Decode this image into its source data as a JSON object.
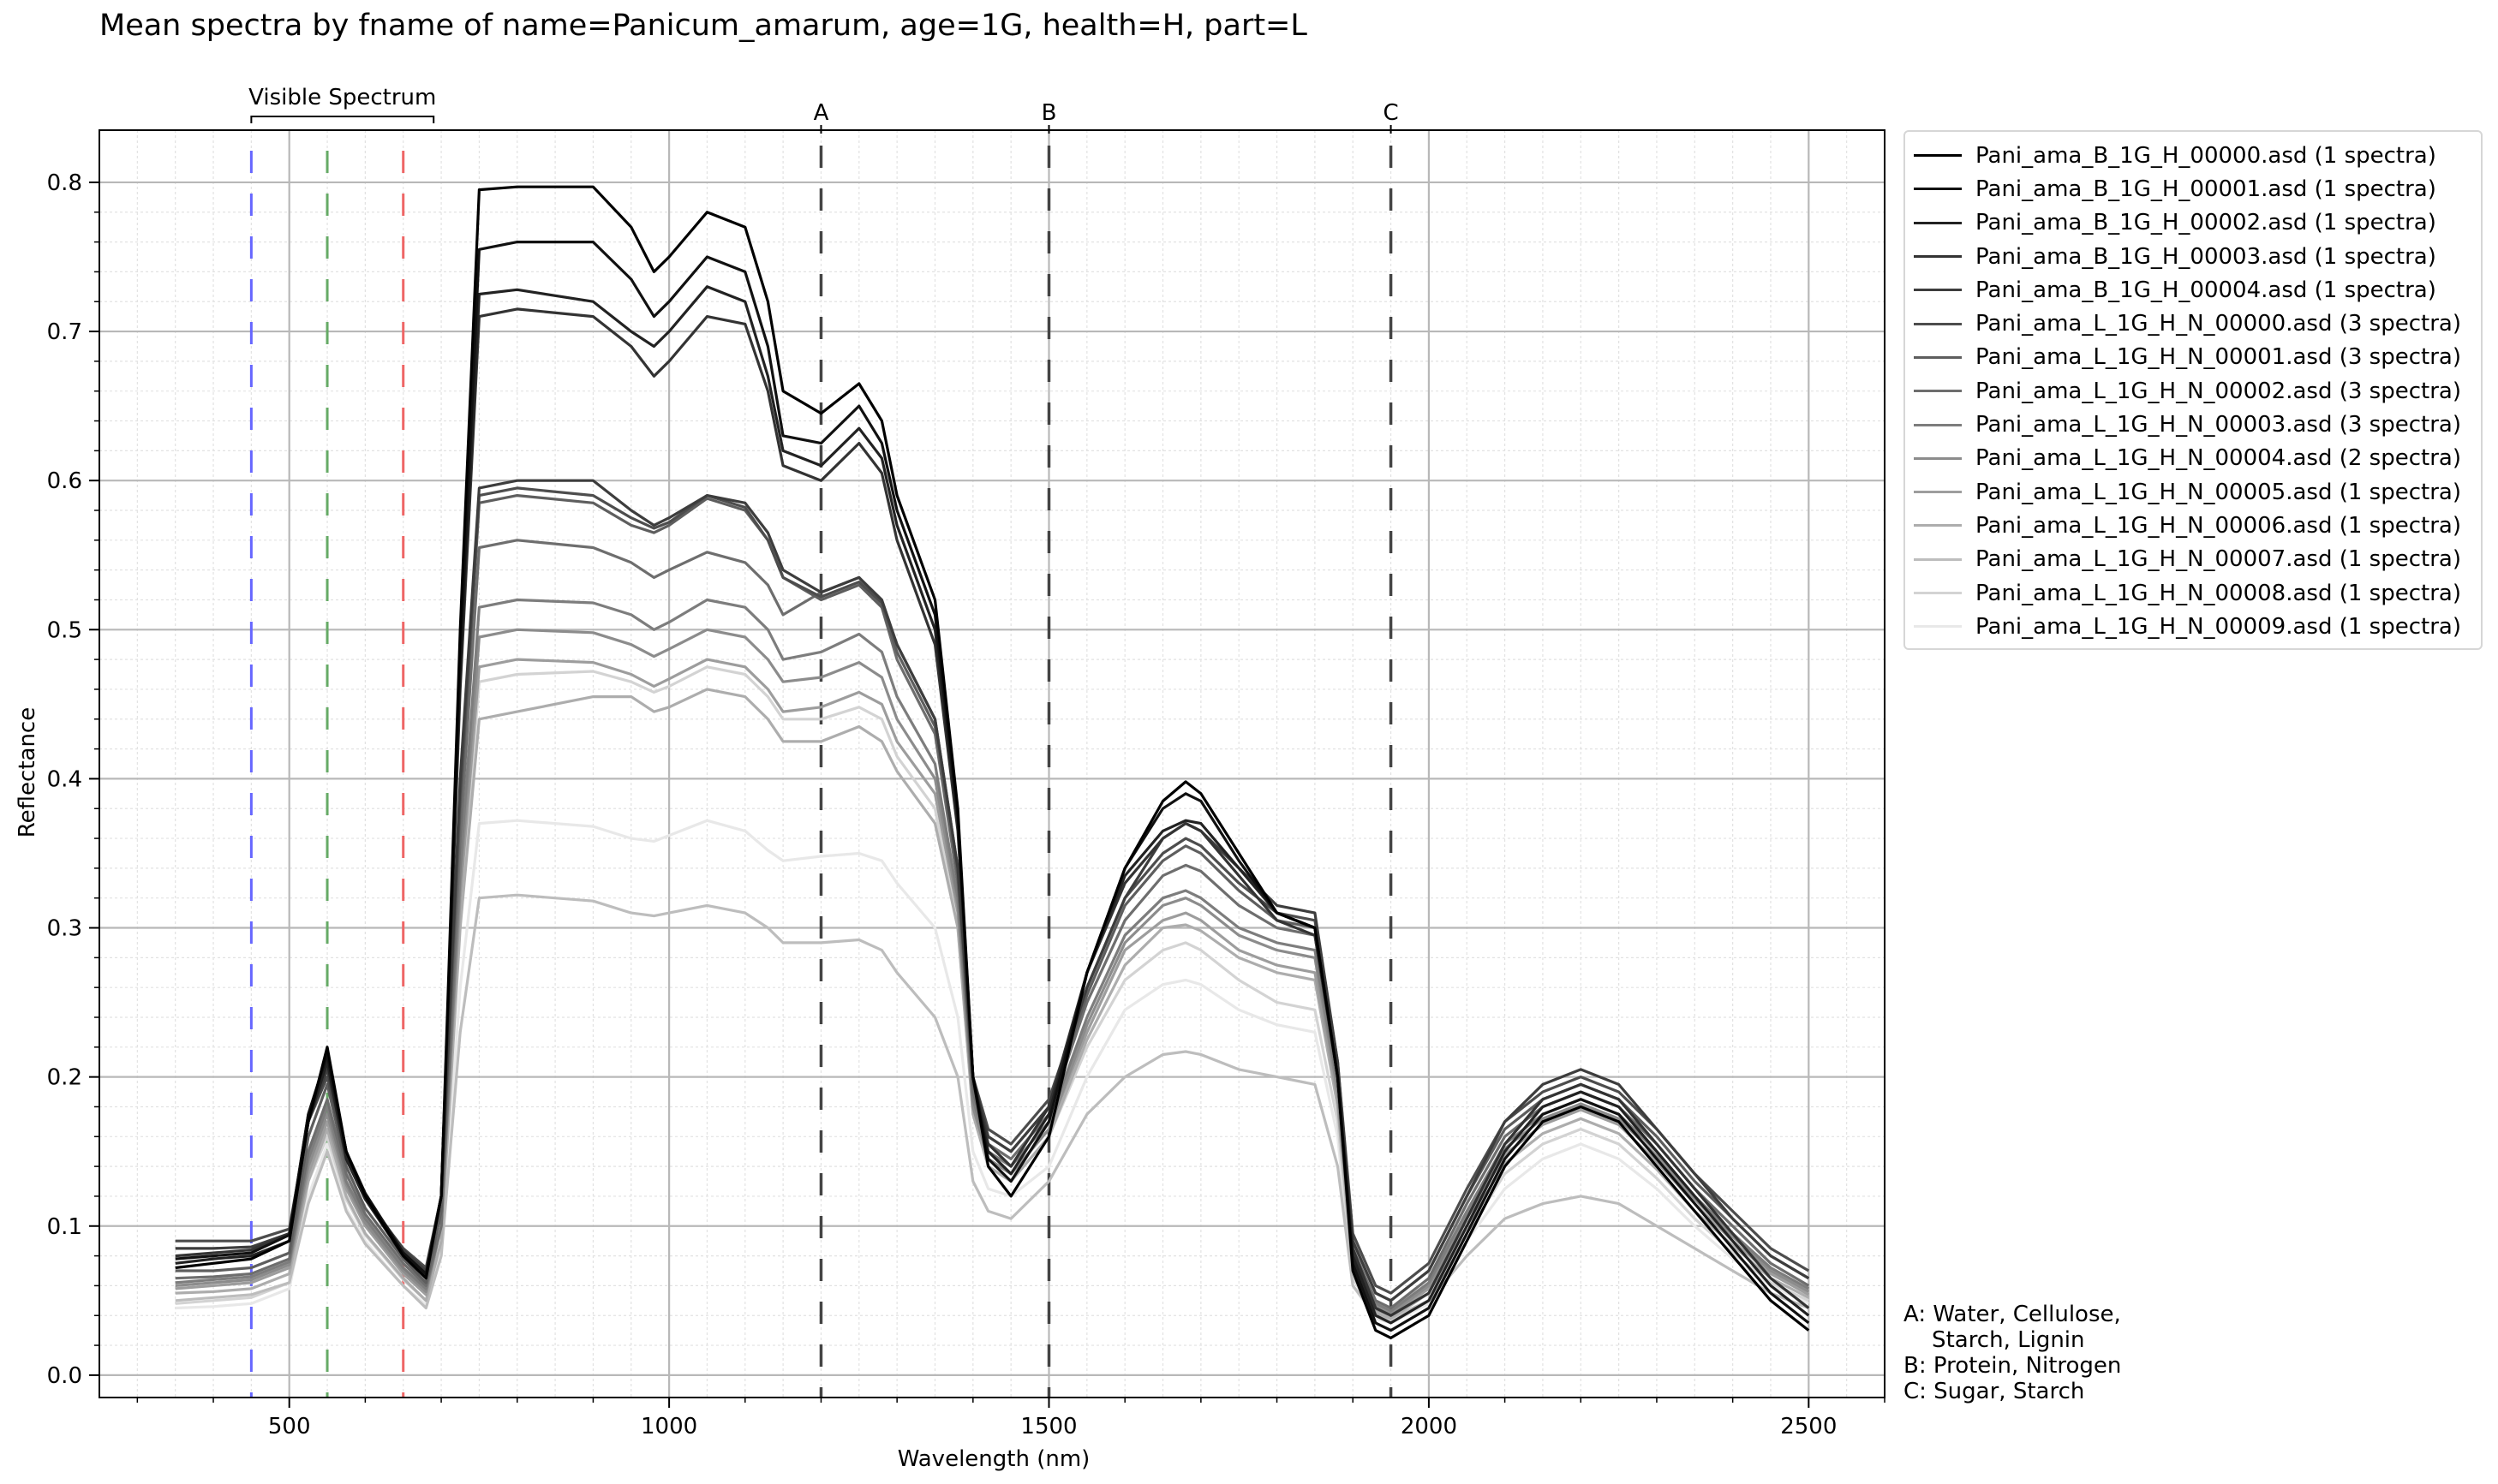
{
  "chart_data": {
    "type": "line",
    "title": "Mean spectra by fname of name=Panicum_amarum, age=1G, health=H, part=L",
    "xlabel": "Wavelength (nm)",
    "ylabel": "Reflectance",
    "xlim": [
      250,
      2600
    ],
    "ylim": [
      -0.015,
      0.835
    ],
    "x_ticks": [
      500,
      1000,
      1500,
      2000,
      2500
    ],
    "x_tick_labels": [
      "500",
      "1000",
      "1500",
      "2000",
      "2500"
    ],
    "y_ticks": [
      0.0,
      0.1,
      0.2,
      0.3,
      0.4,
      0.5,
      0.6,
      0.7,
      0.8
    ],
    "y_tick_labels": [
      "0.0",
      "0.1",
      "0.2",
      "0.3",
      "0.4",
      "0.5",
      "0.6",
      "0.7",
      "0.8"
    ],
    "grid": true,
    "legend_position": "outside-right",
    "visible_spectrum": {
      "label": "Visible Spectrum",
      "range": [
        450,
        690
      ],
      "lines": [
        {
          "x": 450,
          "color": "#6666ff"
        },
        {
          "x": 550,
          "color": "#66aa66"
        },
        {
          "x": 650,
          "color": "#ee6666"
        }
      ]
    },
    "markers": [
      {
        "label": "A",
        "x": 1200
      },
      {
        "label": "B",
        "x": 1500
      },
      {
        "label": "C",
        "x": 1950
      }
    ],
    "notes": "A: Water, Cellulose,\n    Starch, Lignin\nB: Protein, Nitrogen\nC: Sugar, Starch",
    "x": [
      350,
      400,
      450,
      500,
      525,
      550,
      575,
      600,
      650,
      680,
      700,
      725,
      750,
      800,
      900,
      950,
      980,
      1000,
      1050,
      1100,
      1130,
      1150,
      1200,
      1250,
      1280,
      1300,
      1350,
      1380,
      1400,
      1420,
      1450,
      1500,
      1550,
      1600,
      1650,
      1680,
      1700,
      1750,
      1800,
      1850,
      1880,
      1900,
      1930,
      1950,
      2000,
      2050,
      2100,
      2150,
      2200,
      2250,
      2300,
      2350,
      2400,
      2450,
      2500
    ],
    "series": [
      {
        "name": "Pani_ama_B_1G_H_00000.asd (1 spectra)",
        "color": "#000000",
        "values": [
          0.072,
          0.075,
          0.078,
          0.09,
          0.17,
          0.22,
          0.15,
          0.12,
          0.08,
          0.065,
          0.12,
          0.5,
          0.795,
          0.797,
          0.797,
          0.77,
          0.74,
          0.75,
          0.78,
          0.77,
          0.72,
          0.66,
          0.645,
          0.665,
          0.64,
          0.59,
          0.52,
          0.38,
          0.2,
          0.14,
          0.12,
          0.16,
          0.27,
          0.34,
          0.385,
          0.398,
          0.39,
          0.35,
          0.31,
          0.3,
          0.2,
          0.07,
          0.03,
          0.025,
          0.04,
          0.09,
          0.14,
          0.17,
          0.18,
          0.17,
          0.14,
          0.11,
          0.08,
          0.05,
          0.03
        ]
      },
      {
        "name": "Pani_ama_B_1G_H_00001.asd (1 spectra)",
        "color": "#111111",
        "values": [
          0.078,
          0.08,
          0.082,
          0.094,
          0.175,
          0.215,
          0.15,
          0.122,
          0.082,
          0.068,
          0.12,
          0.48,
          0.755,
          0.76,
          0.76,
          0.735,
          0.71,
          0.72,
          0.75,
          0.74,
          0.69,
          0.63,
          0.625,
          0.65,
          0.625,
          0.58,
          0.51,
          0.375,
          0.2,
          0.145,
          0.13,
          0.17,
          0.27,
          0.34,
          0.38,
          0.39,
          0.385,
          0.345,
          0.31,
          0.3,
          0.2,
          0.075,
          0.035,
          0.03,
          0.045,
          0.095,
          0.145,
          0.175,
          0.185,
          0.175,
          0.145,
          0.115,
          0.085,
          0.055,
          0.035
        ]
      },
      {
        "name": "Pani_ama_B_1G_H_00002.asd (1 spectra)",
        "color": "#222222",
        "values": [
          0.075,
          0.078,
          0.08,
          0.09,
          0.17,
          0.21,
          0.145,
          0.118,
          0.08,
          0.066,
          0.12,
          0.47,
          0.725,
          0.728,
          0.72,
          0.7,
          0.69,
          0.7,
          0.73,
          0.72,
          0.67,
          0.62,
          0.61,
          0.635,
          0.615,
          0.57,
          0.5,
          0.37,
          0.2,
          0.15,
          0.135,
          0.175,
          0.27,
          0.335,
          0.365,
          0.372,
          0.37,
          0.34,
          0.31,
          0.3,
          0.2,
          0.08,
          0.04,
          0.035,
          0.05,
          0.1,
          0.15,
          0.18,
          0.19,
          0.18,
          0.15,
          0.12,
          0.09,
          0.06,
          0.04
        ]
      },
      {
        "name": "Pani_ama_B_1G_H_00003.asd (1 spectra)",
        "color": "#333333",
        "values": [
          0.08,
          0.082,
          0.084,
          0.095,
          0.175,
          0.215,
          0.15,
          0.12,
          0.082,
          0.068,
          0.12,
          0.46,
          0.71,
          0.715,
          0.71,
          0.69,
          0.67,
          0.68,
          0.71,
          0.705,
          0.66,
          0.61,
          0.6,
          0.625,
          0.605,
          0.56,
          0.49,
          0.365,
          0.2,
          0.155,
          0.14,
          0.18,
          0.27,
          0.33,
          0.36,
          0.37,
          0.365,
          0.335,
          0.305,
          0.295,
          0.2,
          0.085,
          0.045,
          0.04,
          0.055,
          0.105,
          0.155,
          0.185,
          0.195,
          0.185,
          0.155,
          0.125,
          0.095,
          0.065,
          0.045
        ]
      },
      {
        "name": "Pani_ama_B_1G_H_00004.asd (1 spectra)",
        "color": "#3d3d3d",
        "values": [
          0.085,
          0.085,
          0.086,
          0.095,
          0.17,
          0.205,
          0.148,
          0.12,
          0.084,
          0.07,
          0.12,
          0.4,
          0.595,
          0.6,
          0.6,
          0.58,
          0.57,
          0.575,
          0.59,
          0.585,
          0.565,
          0.54,
          0.525,
          0.535,
          0.52,
          0.49,
          0.44,
          0.34,
          0.2,
          0.16,
          0.15,
          0.18,
          0.26,
          0.32,
          0.36,
          0.37,
          0.365,
          0.34,
          0.315,
          0.31,
          0.21,
          0.09,
          0.055,
          0.05,
          0.07,
          0.12,
          0.17,
          0.195,
          0.205,
          0.195,
          0.165,
          0.135,
          0.105,
          0.08,
          0.065
        ]
      },
      {
        "name": "Pani_ama_L_1G_H_N_00000.asd (3 spectra)",
        "color": "#4d4d4d",
        "values": [
          0.09,
          0.09,
          0.09,
          0.098,
          0.17,
          0.2,
          0.145,
          0.118,
          0.085,
          0.072,
          0.12,
          0.39,
          0.59,
          0.595,
          0.59,
          0.575,
          0.568,
          0.572,
          0.59,
          0.582,
          0.56,
          0.535,
          0.522,
          0.532,
          0.518,
          0.49,
          0.44,
          0.34,
          0.2,
          0.165,
          0.155,
          0.185,
          0.26,
          0.32,
          0.35,
          0.36,
          0.355,
          0.33,
          0.31,
          0.305,
          0.21,
          0.095,
          0.06,
          0.055,
          0.075,
          0.125,
          0.17,
          0.19,
          0.2,
          0.19,
          0.165,
          0.135,
          0.11,
          0.085,
          0.07
        ]
      },
      {
        "name": "Pani_ama_L_1G_H_N_00001.asd (3 spectra)",
        "color": "#5e5e5e",
        "values": [
          0.07,
          0.07,
          0.072,
          0.082,
          0.16,
          0.195,
          0.14,
          0.112,
          0.078,
          0.062,
          0.11,
          0.38,
          0.585,
          0.59,
          0.585,
          0.57,
          0.565,
          0.57,
          0.588,
          0.58,
          0.56,
          0.535,
          0.52,
          0.53,
          0.515,
          0.485,
          0.435,
          0.335,
          0.195,
          0.16,
          0.15,
          0.18,
          0.255,
          0.315,
          0.345,
          0.355,
          0.35,
          0.325,
          0.305,
          0.3,
          0.205,
          0.09,
          0.055,
          0.05,
          0.07,
          0.12,
          0.165,
          0.185,
          0.195,
          0.185,
          0.16,
          0.13,
          0.105,
          0.08,
          0.065
        ]
      },
      {
        "name": "Pani_ama_L_1G_H_N_00002.asd (3 spectra)",
        "color": "#6e6e6e",
        "values": [
          0.065,
          0.066,
          0.068,
          0.078,
          0.15,
          0.185,
          0.135,
          0.108,
          0.075,
          0.06,
          0.1,
          0.36,
          0.555,
          0.56,
          0.555,
          0.545,
          0.535,
          0.54,
          0.552,
          0.545,
          0.53,
          0.51,
          0.525,
          0.535,
          0.515,
          0.48,
          0.43,
          0.33,
          0.19,
          0.155,
          0.145,
          0.175,
          0.25,
          0.305,
          0.335,
          0.342,
          0.338,
          0.315,
          0.3,
          0.295,
          0.2,
          0.085,
          0.05,
          0.045,
          0.065,
          0.115,
          0.16,
          0.18,
          0.19,
          0.18,
          0.155,
          0.125,
          0.1,
          0.075,
          0.06
        ]
      },
      {
        "name": "Pani_ama_L_1G_H_N_00003.asd (3 spectra)",
        "color": "#7d7d7d",
        "values": [
          0.062,
          0.064,
          0.066,
          0.076,
          0.145,
          0.18,
          0.13,
          0.105,
          0.072,
          0.058,
          0.1,
          0.34,
          0.515,
          0.52,
          0.518,
          0.51,
          0.5,
          0.505,
          0.52,
          0.515,
          0.5,
          0.48,
          0.485,
          0.497,
          0.485,
          0.455,
          0.41,
          0.32,
          0.185,
          0.15,
          0.14,
          0.17,
          0.24,
          0.295,
          0.32,
          0.325,
          0.32,
          0.3,
          0.29,
          0.285,
          0.195,
          0.08,
          0.048,
          0.043,
          0.062,
          0.11,
          0.155,
          0.175,
          0.185,
          0.175,
          0.15,
          0.12,
          0.095,
          0.072,
          0.058
        ]
      },
      {
        "name": "Pani_ama_L_1G_H_N_00004.asd (2 spectra)",
        "color": "#8c8c8c",
        "values": [
          0.06,
          0.062,
          0.064,
          0.074,
          0.14,
          0.175,
          0.128,
          0.102,
          0.07,
          0.056,
          0.1,
          0.33,
          0.495,
          0.5,
          0.498,
          0.49,
          0.482,
          0.487,
          0.5,
          0.495,
          0.48,
          0.465,
          0.468,
          0.478,
          0.468,
          0.44,
          0.4,
          0.315,
          0.18,
          0.145,
          0.135,
          0.165,
          0.235,
          0.29,
          0.315,
          0.32,
          0.315,
          0.295,
          0.285,
          0.28,
          0.19,
          0.078,
          0.046,
          0.041,
          0.06,
          0.108,
          0.152,
          0.172,
          0.182,
          0.172,
          0.147,
          0.118,
          0.093,
          0.07,
          0.056
        ]
      },
      {
        "name": "Pani_ama_L_1G_H_N_00005.asd (1 spectra)",
        "color": "#9d9d9d",
        "values": [
          0.058,
          0.06,
          0.062,
          0.072,
          0.135,
          0.17,
          0.125,
          0.1,
          0.068,
          0.054,
          0.1,
          0.32,
          0.475,
          0.48,
          0.478,
          0.47,
          0.462,
          0.467,
          0.48,
          0.475,
          0.46,
          0.445,
          0.448,
          0.458,
          0.45,
          0.425,
          0.39,
          0.31,
          0.18,
          0.145,
          0.135,
          0.165,
          0.23,
          0.285,
          0.305,
          0.31,
          0.305,
          0.285,
          0.275,
          0.27,
          0.185,
          0.075,
          0.044,
          0.04,
          0.058,
          0.105,
          0.148,
          0.168,
          0.178,
          0.168,
          0.143,
          0.115,
          0.09,
          0.068,
          0.054
        ]
      },
      {
        "name": "Pani_ama_L_1G_H_N_00006.asd (1 spectra)",
        "color": "#adadad",
        "values": [
          0.055,
          0.056,
          0.058,
          0.068,
          0.13,
          0.165,
          0.12,
          0.095,
          0.065,
          0.05,
          0.09,
          0.3,
          0.44,
          0.445,
          0.455,
          0.455,
          0.445,
          0.448,
          0.46,
          0.455,
          0.44,
          0.425,
          0.425,
          0.435,
          0.425,
          0.405,
          0.37,
          0.3,
          0.175,
          0.14,
          0.13,
          0.16,
          0.225,
          0.275,
          0.3,
          0.302,
          0.298,
          0.28,
          0.27,
          0.265,
          0.18,
          0.07,
          0.042,
          0.038,
          0.055,
          0.1,
          0.142,
          0.162,
          0.172,
          0.162,
          0.138,
          0.11,
          0.087,
          0.065,
          0.052
        ]
      },
      {
        "name": "Pani_ama_L_1G_H_N_00007.asd (1 spectra)",
        "color": "#bdbdbd",
        "values": [
          0.05,
          0.052,
          0.054,
          0.062,
          0.115,
          0.15,
          0.11,
          0.088,
          0.06,
          0.045,
          0.08,
          0.23,
          0.32,
          0.322,
          0.318,
          0.31,
          0.308,
          0.31,
          0.315,
          0.31,
          0.3,
          0.29,
          0.29,
          0.292,
          0.285,
          0.27,
          0.24,
          0.2,
          0.13,
          0.11,
          0.105,
          0.13,
          0.175,
          0.2,
          0.215,
          0.217,
          0.215,
          0.205,
          0.2,
          0.195,
          0.14,
          0.06,
          0.04,
          0.038,
          0.05,
          0.08,
          0.105,
          0.115,
          0.12,
          0.115,
          0.1,
          0.085,
          0.07,
          0.055,
          0.045
        ]
      },
      {
        "name": "Pani_ama_L_1G_H_N_00008.asd (1 spectra)",
        "color": "#d3d3d3",
        "values": [
          0.048,
          0.05,
          0.052,
          0.062,
          0.13,
          0.16,
          0.118,
          0.094,
          0.064,
          0.05,
          0.09,
          0.31,
          0.465,
          0.47,
          0.472,
          0.465,
          0.458,
          0.462,
          0.475,
          0.47,
          0.455,
          0.44,
          0.44,
          0.448,
          0.44,
          0.415,
          0.38,
          0.3,
          0.175,
          0.14,
          0.13,
          0.16,
          0.22,
          0.265,
          0.285,
          0.29,
          0.285,
          0.265,
          0.25,
          0.245,
          0.17,
          0.065,
          0.04,
          0.036,
          0.05,
          0.095,
          0.135,
          0.155,
          0.165,
          0.155,
          0.132,
          0.105,
          0.082,
          0.062,
          0.05
        ]
      },
      {
        "name": "Pani_ama_L_1G_H_N_00009.asd (1 spectra)",
        "color": "#e8e8e8",
        "values": [
          0.045,
          0.046,
          0.048,
          0.058,
          0.12,
          0.155,
          0.112,
          0.09,
          0.06,
          0.047,
          0.085,
          0.26,
          0.37,
          0.372,
          0.368,
          0.36,
          0.358,
          0.362,
          0.372,
          0.365,
          0.352,
          0.345,
          0.348,
          0.35,
          0.345,
          0.33,
          0.3,
          0.24,
          0.15,
          0.125,
          0.12,
          0.14,
          0.2,
          0.245,
          0.262,
          0.265,
          0.262,
          0.245,
          0.235,
          0.23,
          0.16,
          0.06,
          0.038,
          0.035,
          0.048,
          0.09,
          0.125,
          0.145,
          0.155,
          0.145,
          0.125,
          0.1,
          0.078,
          0.06,
          0.048
        ]
      }
    ]
  }
}
